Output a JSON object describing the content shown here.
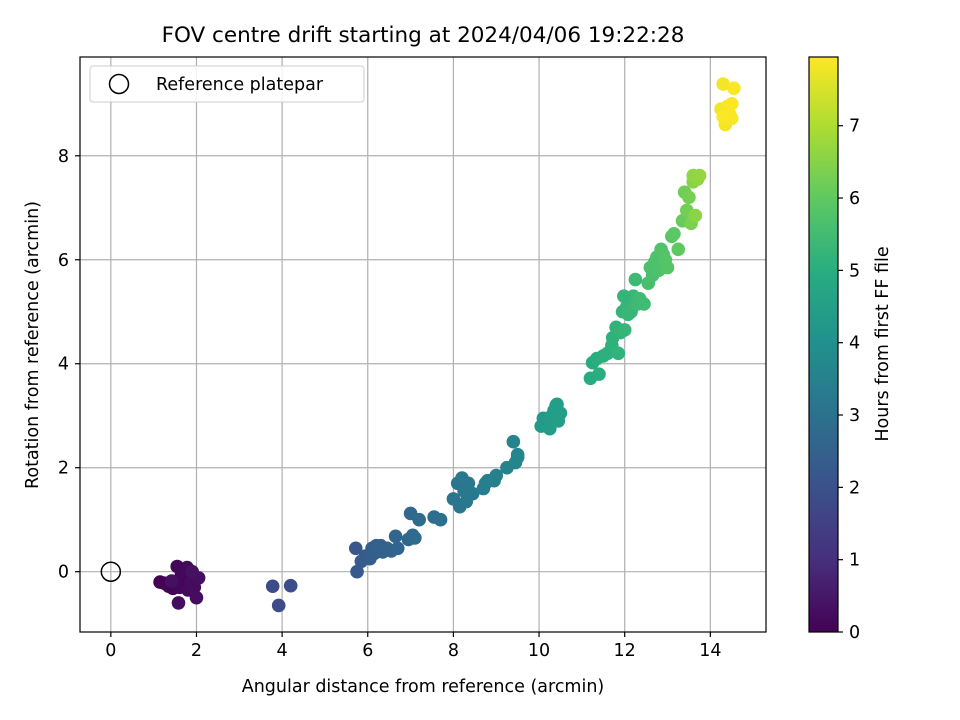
{
  "chart_data": {
    "type": "scatter",
    "title": "FOV centre drift starting at 2024/04/06 19:22:28",
    "xlabel": "Angular distance from reference (arcmin)",
    "ylabel": "Rotation from reference (arcmin)",
    "xlim": [
      -0.72,
      15.3
    ],
    "ylim": [
      -1.16,
      9.9
    ],
    "xticks": [
      0,
      2,
      4,
      6,
      8,
      10,
      12,
      14
    ],
    "yticks": [
      0,
      2,
      4,
      6,
      8
    ],
    "grid": true,
    "legend": {
      "placement": "top-left",
      "entries": [
        "Reference platepar"
      ]
    },
    "reference_point": {
      "label": "Reference platepar",
      "x": 0,
      "y": 0
    },
    "colorbar": {
      "label": "Hours from first FF file",
      "min": 0,
      "max": 7.95,
      "ticks": [
        0,
        1,
        2,
        3,
        4,
        5,
        6,
        7
      ],
      "colormap": "viridis"
    },
    "series": [
      {
        "x": [
          1.15,
          1.25,
          1.35,
          1.45,
          1.52,
          1.55,
          1.6,
          1.65,
          1.72,
          1.78,
          1.8,
          1.88,
          1.95,
          2.0,
          2.05,
          1.58,
          1.42,
          1.9
        ],
        "y": [
          -0.2,
          -0.22,
          -0.28,
          -0.32,
          -0.25,
          0.1,
          -0.3,
          -0.05,
          -0.15,
          0.08,
          -0.35,
          -0.22,
          -0.3,
          -0.5,
          -0.12,
          -0.6,
          -0.18,
          0.0
        ],
        "c": [
          0.0,
          0.02,
          0.04,
          0.06,
          0.08,
          0.1,
          0.12,
          0.14,
          0.16,
          0.18,
          0.2,
          0.22,
          0.24,
          0.26,
          0.28,
          0.3,
          0.32,
          0.34
        ]
      },
      {
        "x": [
          3.78,
          3.92,
          4.2
        ],
        "y": [
          -0.28,
          -0.65,
          -0.27
        ],
        "c": [
          1.8,
          1.85,
          1.9
        ]
      },
      {
        "x": [
          5.72,
          5.75,
          5.85,
          5.95,
          6.05,
          6.1,
          6.15,
          6.2,
          6.25,
          6.3,
          6.35,
          6.45,
          6.55,
          6.65,
          6.7,
          6.95,
          7.0,
          7.05,
          7.1,
          7.2,
          7.55,
          7.7
        ],
        "y": [
          0.45,
          0.0,
          0.2,
          0.3,
          0.25,
          0.45,
          0.35,
          0.5,
          0.4,
          0.5,
          0.38,
          0.45,
          0.4,
          0.68,
          0.45,
          0.62,
          1.12,
          0.7,
          0.65,
          1.0,
          1.05,
          1.0
        ],
        "c": [
          2.2,
          2.25,
          2.3,
          2.32,
          2.35,
          2.38,
          2.4,
          2.42,
          2.44,
          2.46,
          2.48,
          2.5,
          2.55,
          2.6,
          2.62,
          2.7,
          2.72,
          2.75,
          2.78,
          2.8,
          2.9,
          2.95
        ]
      },
      {
        "x": [
          8.0,
          8.1,
          8.15,
          8.2,
          8.25,
          8.3,
          8.35,
          8.45,
          8.7,
          8.75,
          8.8,
          8.95,
          9.0,
          9.25,
          9.4,
          9.45,
          9.5,
          9.5
        ],
        "y": [
          1.4,
          1.7,
          1.25,
          1.8,
          1.55,
          1.35,
          1.7,
          1.5,
          1.6,
          1.7,
          1.75,
          1.75,
          1.85,
          2.0,
          2.5,
          2.1,
          2.2,
          2.25
        ],
        "c": [
          3.1,
          3.12,
          3.14,
          3.16,
          3.18,
          3.2,
          3.22,
          3.25,
          3.35,
          3.38,
          3.4,
          3.45,
          3.48,
          3.55,
          3.6,
          3.62,
          3.64,
          3.66
        ]
      },
      {
        "x": [
          10.05,
          10.1,
          10.15,
          10.2,
          10.25,
          10.3,
          10.35,
          10.4,
          10.45,
          10.5,
          10.42
        ],
        "y": [
          2.8,
          2.95,
          2.85,
          2.9,
          2.75,
          3.0,
          3.1,
          3.2,
          2.9,
          3.05,
          3.22
        ],
        "c": [
          4.3,
          4.32,
          4.34,
          4.36,
          4.38,
          4.4,
          4.42,
          4.44,
          4.46,
          4.48,
          4.5
        ]
      },
      {
        "x": [
          11.2,
          11.25,
          11.35,
          11.4,
          11.5,
          11.6,
          11.7,
          11.72,
          11.8,
          11.85,
          11.9,
          11.95,
          12.0,
          12.05,
          12.1,
          12.15,
          12.2,
          12.25,
          12.3,
          12.35,
          12.45,
          11.98,
          12.08
        ],
        "y": [
          3.72,
          4.02,
          4.1,
          3.8,
          4.15,
          4.2,
          4.35,
          4.5,
          4.7,
          4.2,
          4.6,
          5.0,
          4.65,
          5.1,
          5.2,
          5.0,
          5.3,
          5.62,
          5.15,
          5.25,
          5.15,
          5.3,
          4.95
        ],
        "c": [
          4.9,
          4.95,
          5.0,
          5.02,
          5.05,
          5.08,
          5.1,
          5.12,
          5.15,
          5.18,
          5.2,
          5.22,
          5.25,
          5.28,
          5.3,
          5.32,
          5.35,
          5.38,
          5.4,
          5.42,
          5.45,
          5.24,
          5.3
        ]
      },
      {
        "x": [
          12.55,
          12.6,
          12.65,
          12.7,
          12.75,
          12.8,
          12.85,
          12.9,
          12.95,
          13.0,
          13.1,
          13.15,
          13.25,
          13.35,
          13.4,
          13.45,
          13.5,
          13.55,
          13.6,
          13.65,
          13.7,
          13.6,
          13.75
        ],
        "y": [
          5.55,
          5.85,
          5.7,
          5.95,
          6.05,
          5.8,
          6.2,
          6.1,
          6.0,
          5.85,
          6.45,
          6.5,
          6.2,
          6.75,
          7.3,
          6.95,
          7.2,
          6.7,
          7.5,
          6.85,
          7.55,
          7.62,
          7.62
        ],
        "c": [
          5.6,
          5.62,
          5.65,
          5.68,
          5.7,
          5.72,
          5.75,
          5.78,
          5.8,
          5.82,
          5.9,
          5.95,
          6.0,
          6.1,
          6.2,
          6.25,
          6.3,
          6.35,
          6.5,
          6.55,
          6.6,
          6.62,
          6.65
        ]
      },
      {
        "x": [
          14.25,
          14.3,
          14.35,
          14.4,
          14.45,
          14.5,
          14.55,
          14.3,
          14.5
        ],
        "y": [
          8.9,
          9.38,
          8.6,
          8.95,
          8.8,
          8.72,
          9.3,
          8.75,
          9.0
        ],
        "c": [
          7.8,
          7.82,
          7.84,
          7.86,
          7.88,
          7.9,
          7.92,
          7.94,
          7.95
        ]
      }
    ]
  }
}
